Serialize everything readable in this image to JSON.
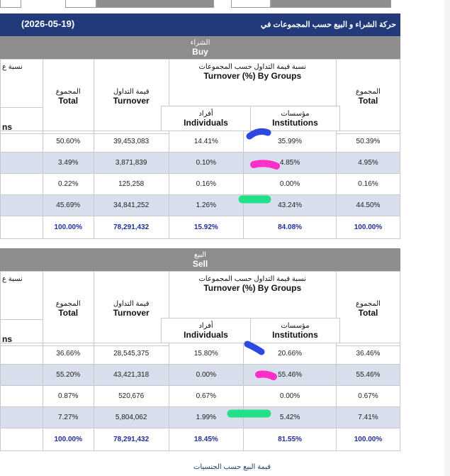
{
  "header": {
    "date": "(2026-05-19)",
    "title": "حركة الشراء و البيع حسب المجموعات في"
  },
  "buy": {
    "section_ar": "الشراء",
    "section_en": "Buy",
    "clipped_header": "نسبة ع",
    "clipped_sub": "ns",
    "col_total_ar": "المجموع",
    "col_total_en": "Total",
    "col_turnover_ar": "قيمة التداول",
    "col_turnover_en": "Turnover",
    "col_groups_ar": "نسبة قيمة التداول حسب المجموعات",
    "col_groups_en": "Turnover (%) By Groups",
    "col_individuals_ar": "أفراد",
    "col_individuals_en": "Individuals",
    "col_institutions_ar": "مؤسسات",
    "col_institutions_en": "Institutions",
    "col_total2_ar": "المجموع",
    "col_total2_en": "Total",
    "rows": [
      {
        "total": "50.60%",
        "turnover": "39,453,083",
        "individuals": "14.41%",
        "institutions": "35.99%",
        "total2": "50.39%"
      },
      {
        "total": "3.49%",
        "turnover": "3,871,839",
        "individuals": "0.10%",
        "institutions": "4.85%",
        "total2": "4.95%"
      },
      {
        "total": "0.22%",
        "turnover": "125,258",
        "individuals": "0.16%",
        "institutions": "0.00%",
        "total2": "0.16%"
      },
      {
        "total": "45.69%",
        "turnover": "34,841,252",
        "individuals": "1.26%",
        "institutions": "43.24%",
        "total2": "44.50%"
      },
      {
        "total": "100.00%",
        "turnover": "78,291,432",
        "individuals": "15.92%",
        "institutions": "84.08%",
        "total2": "100.00%"
      }
    ]
  },
  "sell": {
    "section_ar": "البيع",
    "section_en": "Sell",
    "clipped_header": "نسبة ع",
    "clipped_sub": "ns",
    "col_total_ar": "المجموع",
    "col_total_en": "Total",
    "col_turnover_ar": "قيمة التداول",
    "col_turnover_en": "Turnover",
    "col_groups_ar": "نسبة قيمة التداول حسب المجموعات",
    "col_groups_en": "Turnover (%) By Groups",
    "col_individuals_ar": "أفراد",
    "col_individuals_en": "Individuals",
    "col_institutions_ar": "مؤسسات",
    "col_institutions_en": "Institutions",
    "col_total2_ar": "المجموع",
    "col_total2_en": "Total",
    "rows": [
      {
        "total": "36.66%",
        "turnover": "28,545,375",
        "individuals": "15.80%",
        "institutions": "20.66%",
        "total2": "36.46%"
      },
      {
        "total": "55.20%",
        "turnover": "43,421,318",
        "individuals": "0.00%",
        "institutions": "55.46%",
        "total2": "55.46%"
      },
      {
        "total": "0.87%",
        "turnover": "520,676",
        "individuals": "0.67%",
        "institutions": "0.00%",
        "total2": "0.67%"
      },
      {
        "total": "7.27%",
        "turnover": "5,804,062",
        "individuals": "1.99%",
        "institutions": "5.42%",
        "total2": "7.41%"
      },
      {
        "total": "100.00%",
        "turnover": "78,291,432",
        "individuals": "18.45%",
        "institutions": "81.55%",
        "total2": "100.00%"
      }
    ]
  },
  "footer": {
    "caption": "قيمة البيع حسب الجنسيات"
  },
  "highlight_colors": {
    "blue": "#2f49e0",
    "pink": "#ff2fc8",
    "green": "#22e08a"
  }
}
